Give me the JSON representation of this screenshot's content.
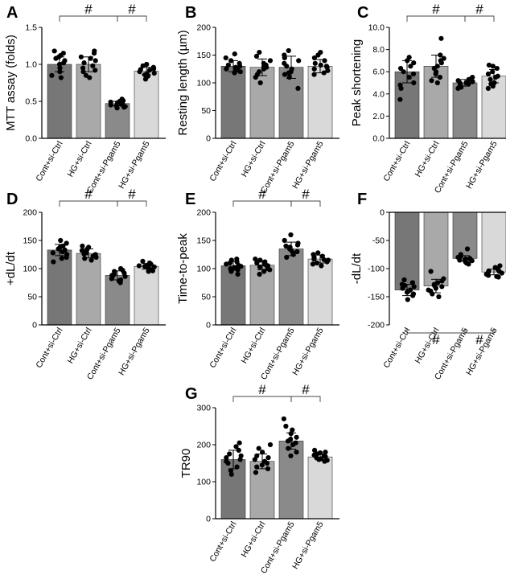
{
  "figure": {
    "colors": {
      "bars": [
        "#777777",
        "#a9a9a9",
        "#8a8a8a",
        "#d9d9d9"
      ],
      "edge": "#333333",
      "dots": "#000000"
    },
    "categories": [
      "Cont+si-Ctrl",
      "HG+si-Ctrl",
      "Cont+si-Pgam5",
      "HG+si-Pgam5"
    ]
  },
  "chart_data": [
    {
      "type": "bar",
      "panel": "A",
      "ylabel": "MTT assay (folds)",
      "categories": [
        "Cont+si-Ctrl",
        "HG+si-Ctrl",
        "Cont+si-Pgam5",
        "HG+si-Pgam5"
      ],
      "values": [
        1.0,
        1.0,
        0.47,
        0.91
      ],
      "errors": [
        0.1,
        0.1,
        0.03,
        0.05
      ],
      "points": [
        [
          1.18,
          1.15,
          1.12,
          1.1,
          1.08,
          1.05,
          1.02,
          1.0,
          0.95,
          0.9,
          0.85,
          0.82
        ],
        [
          1.18,
          1.15,
          1.1,
          1.08,
          1.05,
          1.02,
          0.98,
          0.95,
          0.92,
          0.9,
          0.85,
          0.82
        ],
        [
          0.53,
          0.51,
          0.5,
          0.49,
          0.48,
          0.47,
          0.46,
          0.45,
          0.44,
          0.43,
          0.42,
          0.41
        ],
        [
          1.0,
          0.98,
          0.96,
          0.94,
          0.93,
          0.92,
          0.9,
          0.88,
          0.87,
          0.86,
          0.84,
          0.8
        ]
      ],
      "ylim": [
        0,
        1.5
      ],
      "yticks": [
        0.0,
        0.5,
        1.0,
        1.5
      ],
      "tick_labels": [
        "0.0",
        "0.5",
        "1.0",
        "1.5"
      ],
      "comparisons": [
        {
          "from": 0,
          "to": 2,
          "label": "#",
          "side": "top"
        },
        {
          "from": 2,
          "to": 3,
          "label": "#",
          "side": "top"
        }
      ]
    },
    {
      "type": "bar",
      "panel": "B",
      "ylabel": "Resting length (µm)",
      "categories": [
        "Cont+si-Ctrl",
        "HG+si-Ctrl",
        "Cont+si-Pgam5",
        "HG+si-Pgam5"
      ],
      "values": [
        130,
        128,
        128,
        130
      ],
      "errors": [
        10,
        15,
        20,
        12
      ],
      "points": [
        [
          152,
          145,
          140,
          135,
          132,
          130,
          128,
          126,
          125,
          122,
          120,
          118
        ],
        [
          155,
          148,
          140,
          135,
          132,
          130,
          128,
          125,
          120,
          115,
          110,
          100
        ],
        [
          158,
          150,
          145,
          140,
          135,
          130,
          125,
          120,
          118,
          115,
          110,
          90
        ],
        [
          155,
          150,
          145,
          140,
          135,
          132,
          130,
          128,
          125,
          122,
          118,
          115
        ]
      ],
      "ylim": [
        0,
        200
      ],
      "yticks": [
        0,
        50,
        100,
        150,
        200
      ],
      "tick_labels": [
        "0",
        "50",
        "100",
        "150",
        "200"
      ],
      "comparisons": []
    },
    {
      "type": "bar",
      "panel": "C",
      "ylabel": "Peak shortening",
      "categories": [
        "Cont+si-Ctrl",
        "HG+si-Ctrl",
        "Cont+si-Pgam5",
        "HG+si-Pgam5"
      ],
      "values": [
        6.0,
        6.5,
        5.0,
        5.6
      ],
      "errors": [
        1.0,
        1.0,
        0.3,
        0.6
      ],
      "points": [
        [
          7.3,
          7.0,
          6.8,
          6.5,
          6.3,
          6.0,
          5.8,
          5.5,
          5.0,
          4.8,
          4.5,
          3.5
        ],
        [
          9.0,
          7.5,
          7.2,
          7.0,
          6.8,
          6.5,
          6.3,
          6.0,
          5.8,
          5.5,
          5.2,
          5.0
        ],
        [
          5.5,
          5.4,
          5.3,
          5.2,
          5.1,
          5.0,
          5.0,
          4.9,
          4.8,
          4.7,
          4.6,
          4.5
        ],
        [
          6.6,
          6.5,
          6.3,
          6.0,
          5.8,
          5.6,
          5.5,
          5.3,
          5.0,
          4.9,
          4.7,
          4.5
        ]
      ],
      "ylim": [
        0,
        10
      ],
      "yticks": [
        0.0,
        2.0,
        4.0,
        6.0,
        8.0,
        10.0
      ],
      "tick_labels": [
        "0.0",
        "2.0",
        "4.0",
        "6.0",
        "8.0",
        "10.0"
      ],
      "comparisons": [
        {
          "from": 0,
          "to": 2,
          "label": "#",
          "side": "top"
        },
        {
          "from": 2,
          "to": 3,
          "label": "#",
          "side": "top"
        }
      ]
    },
    {
      "type": "bar",
      "panel": "D",
      "ylabel": "+dL/dt",
      "categories": [
        "Cont+si-Ctrl",
        "HG+si-Ctrl",
        "Cont+si-Pgam5",
        "HG+si-Pgam5"
      ],
      "values": [
        133,
        127,
        88,
        104
      ],
      "errors": [
        10,
        8,
        8,
        5
      ],
      "points": [
        [
          150,
          145,
          140,
          138,
          135,
          133,
          130,
          128,
          125,
          120,
          118,
          112
        ],
        [
          140,
          138,
          135,
          132,
          130,
          128,
          126,
          125,
          122,
          120,
          118,
          115
        ],
        [
          100,
          97,
          95,
          92,
          90,
          88,
          86,
          85,
          82,
          80,
          78,
          75
        ],
        [
          113,
          110,
          108,
          106,
          105,
          104,
          103,
          102,
          100,
          98,
          96,
          95
        ]
      ],
      "ylim": [
        0,
        200
      ],
      "yticks": [
        0,
        50,
        100,
        150,
        200
      ],
      "tick_labels": [
        "0",
        "50",
        "100",
        "150",
        "200"
      ],
      "comparisons": [
        {
          "from": 0,
          "to": 2,
          "label": "#",
          "side": "top"
        },
        {
          "from": 2,
          "to": 3,
          "label": "#",
          "side": "top"
        }
      ]
    },
    {
      "type": "bar",
      "panel": "E",
      "ylabel": "Time-to-peak",
      "categories": [
        "Cont+si-Ctrl",
        "HG+si-Ctrl",
        "Cont+si-Pgam5",
        "HG+si-Pgam5"
      ],
      "values": [
        105,
        106,
        135,
        117
      ],
      "errors": [
        8,
        8,
        12,
        7
      ],
      "points": [
        [
          117,
          115,
          112,
          110,
          108,
          106,
          104,
          102,
          100,
          98,
          95,
          90
        ],
        [
          117,
          115,
          112,
          110,
          108,
          106,
          105,
          103,
          100,
          98,
          95,
          90
        ],
        [
          160,
          150,
          145,
          142,
          140,
          138,
          135,
          132,
          130,
          128,
          125,
          120
        ],
        [
          128,
          125,
          122,
          120,
          118,
          117,
          116,
          115,
          112,
          110,
          108,
          105
        ]
      ],
      "ylim": [
        0,
        200
      ],
      "yticks": [
        0,
        50,
        100,
        150,
        200
      ],
      "tick_labels": [
        "0",
        "50",
        "100",
        "150",
        "200"
      ],
      "comparisons": [
        {
          "from": 0,
          "to": 2,
          "label": "#",
          "side": "top"
        },
        {
          "from": 2,
          "to": 3,
          "label": "#",
          "side": "top"
        }
      ]
    },
    {
      "type": "bar",
      "panel": "F",
      "ylabel": "-dL/dt",
      "categories": [
        "Cont+si-Ctrl",
        "HG+si-Ctrl",
        "Cont+si-Pgam5",
        "HG+si-Pgam5"
      ],
      "values": [
        -138,
        -131,
        -82,
        -106
      ],
      "errors": [
        10,
        12,
        5,
        5
      ],
      "points": [
        [
          -120,
          -125,
          -128,
          -130,
          -132,
          -135,
          -138,
          -140,
          -142,
          -145,
          -148,
          -155
        ],
        [
          -105,
          -118,
          -122,
          -125,
          -128,
          -130,
          -132,
          -135,
          -138,
          -140,
          -145,
          -150
        ],
        [
          -65,
          -75,
          -78,
          -80,
          -82,
          -83,
          -84,
          -85,
          -86,
          -88,
          -90,
          -92
        ],
        [
          -95,
          -98,
          -100,
          -102,
          -104,
          -105,
          -106,
          -108,
          -110,
          -112,
          -114,
          -115
        ]
      ],
      "ylim": [
        -200,
        0
      ],
      "yticks": [
        0,
        -50,
        -100,
        -150,
        -200
      ],
      "tick_labels": [
        "0",
        "-50",
        "-100",
        "-150",
        "-200"
      ],
      "comparisons": [
        {
          "from": 0,
          "to": 2,
          "label": "#",
          "side": "bottom"
        },
        {
          "from": 2,
          "to": 3,
          "label": "#",
          "side": "bottom"
        }
      ]
    },
    {
      "type": "bar",
      "panel": "G",
      "ylabel": "TR90",
      "categories": [
        "Cont+si-Ctrl",
        "HG+si-Ctrl",
        "Cont+si-Pgam5",
        "HG+si-Pgam5"
      ],
      "values": [
        160,
        155,
        210,
        167
      ],
      "errors": [
        25,
        20,
        22,
        8
      ],
      "points": [
        [
          205,
          195,
          185,
          175,
          170,
          165,
          160,
          155,
          150,
          140,
          130,
          120
        ],
        [
          200,
          190,
          180,
          170,
          165,
          160,
          155,
          150,
          145,
          140,
          135,
          125
        ],
        [
          270,
          250,
          240,
          230,
          220,
          215,
          210,
          205,
          200,
          190,
          180,
          170
        ],
        [
          185,
          180,
          178,
          175,
          172,
          170,
          168,
          165,
          162,
          160,
          158,
          155
        ]
      ],
      "ylim": [
        0,
        300
      ],
      "yticks": [
        0,
        100,
        200,
        300
      ],
      "tick_labels": [
        "0",
        "100",
        "200",
        "300"
      ],
      "comparisons": [
        {
          "from": 0,
          "to": 2,
          "label": "#",
          "side": "top"
        },
        {
          "from": 2,
          "to": 3,
          "label": "#",
          "side": "top"
        }
      ]
    }
  ]
}
